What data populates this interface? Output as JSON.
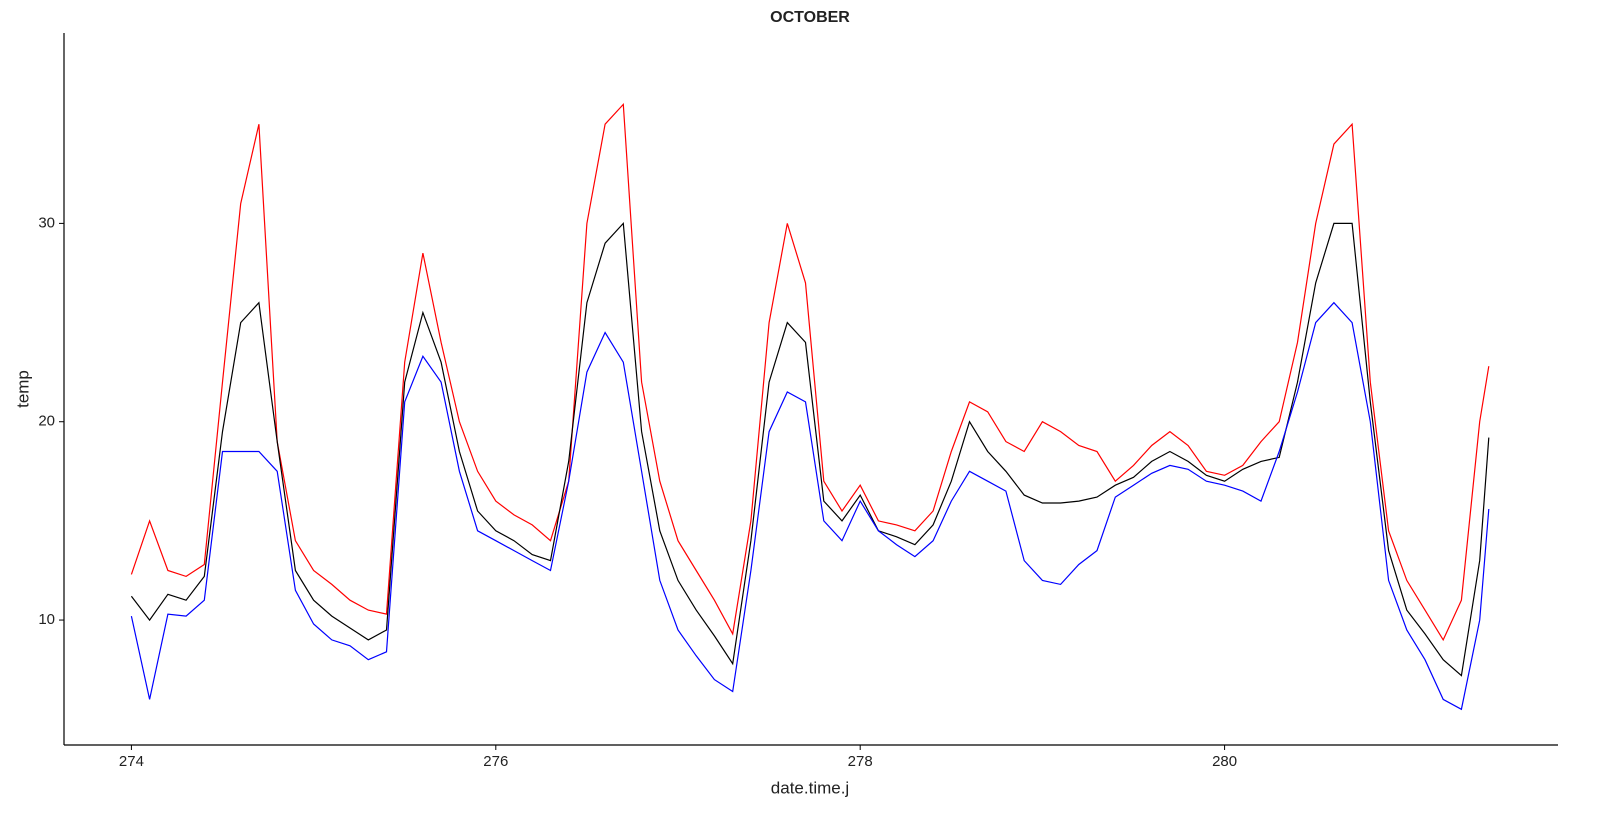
{
  "chart_data": {
    "type": "line",
    "title": "OCTOBER",
    "x_label": "date.time.j",
    "y_label": "temp",
    "x": [
      274.0,
      274.1,
      274.2,
      274.3,
      274.4,
      274.5,
      274.6,
      274.7,
      274.8,
      274.9,
      275.0,
      275.1,
      275.2,
      275.3,
      275.4,
      275.5,
      275.6,
      275.7,
      275.8,
      275.9,
      276.0,
      276.1,
      276.2,
      276.3,
      276.4,
      276.5,
      276.6,
      276.7,
      276.8,
      276.9,
      277.0,
      277.1,
      277.2,
      277.3,
      277.4,
      277.5,
      277.6,
      277.7,
      277.8,
      277.9,
      278.0,
      278.1,
      278.2,
      278.3,
      278.4,
      278.5,
      278.6,
      278.7,
      278.8,
      278.9,
      279.0,
      279.1,
      279.2,
      279.3,
      279.4,
      279.5,
      279.6,
      279.7,
      279.8,
      279.9,
      280.0,
      280.1,
      280.2,
      280.3,
      280.4,
      280.5,
      280.6,
      280.7,
      280.8,
      280.9,
      281.0,
      281.1,
      281.2,
      281.3,
      281.4,
      281.45
    ],
    "series": [
      {
        "color": "#ff0000",
        "values": [
          12.3,
          15.0,
          12.5,
          12.2,
          12.8,
          22,
          31,
          35,
          19,
          14,
          12.5,
          11.8,
          11,
          10.5,
          10.3,
          23,
          28.5,
          24,
          20,
          17.5,
          16,
          15.3,
          14.8,
          14.0,
          17,
          30,
          35,
          36,
          22,
          17,
          14,
          12.5,
          11,
          9.3,
          15,
          25,
          30,
          27,
          17,
          15.5,
          16.8,
          15.0,
          14.8,
          14.5,
          15.5,
          18.5,
          21,
          20.5,
          19,
          18.5,
          20,
          19.5,
          18.8,
          18.5,
          17,
          17.8,
          18.8,
          19.5,
          18.8,
          17.5,
          17.3,
          17.8,
          19,
          20,
          24,
          30,
          34,
          35,
          22,
          14.5,
          12,
          10.5,
          9.0,
          11,
          20,
          22.8
        ]
      },
      {
        "color": "#000000",
        "values": [
          11.2,
          10.0,
          11.3,
          11.0,
          12.2,
          19.5,
          25,
          26,
          19,
          12.5,
          11.0,
          10.2,
          9.6,
          9.0,
          9.5,
          22,
          25.5,
          23,
          18.5,
          15.5,
          14.5,
          14.0,
          13.3,
          13.0,
          18,
          26,
          29,
          30,
          19.5,
          14.5,
          12,
          10.5,
          9.2,
          7.8,
          14,
          22,
          25,
          24,
          16,
          15,
          16.3,
          14.5,
          14.2,
          13.8,
          14.8,
          17,
          20,
          18.5,
          17.5,
          16.3,
          15.9,
          15.9,
          16.0,
          16.2,
          16.8,
          17.2,
          18.0,
          18.5,
          18.0,
          17.3,
          17.0,
          17.6,
          18,
          18.2,
          22,
          27,
          30,
          30,
          21,
          13.5,
          10.5,
          9.3,
          8,
          7.2,
          13,
          19.2
        ]
      },
      {
        "color": "#0000ff",
        "values": [
          10.2,
          6.0,
          10.3,
          10.2,
          11.0,
          18.5,
          18.5,
          18.5,
          17.5,
          11.5,
          9.8,
          9.0,
          8.7,
          8.0,
          8.4,
          21,
          23.3,
          22,
          17.5,
          14.5,
          14.0,
          13.5,
          13.0,
          12.5,
          17,
          22.5,
          24.5,
          23,
          17.5,
          12,
          9.5,
          8.2,
          7.0,
          6.4,
          12.5,
          19.5,
          21.5,
          21,
          15,
          14,
          16,
          14.5,
          13.8,
          13.2,
          14.0,
          16,
          17.5,
          17,
          16.5,
          13,
          12,
          11.8,
          12.8,
          13.5,
          16.2,
          16.8,
          17.4,
          17.8,
          17.6,
          17,
          16.8,
          16.5,
          16,
          18.5,
          21.5,
          25,
          26,
          25,
          20,
          12,
          9.5,
          8,
          6,
          5.5,
          10,
          15.6
        ]
      }
    ],
    "xlim": [
      273.63,
      281.83
    ],
    "ylim": [
      3.7,
      39.6
    ],
    "xticks": [
      274,
      276,
      278,
      280
    ],
    "yticks": [
      10,
      20,
      30
    ],
    "grid": false
  }
}
